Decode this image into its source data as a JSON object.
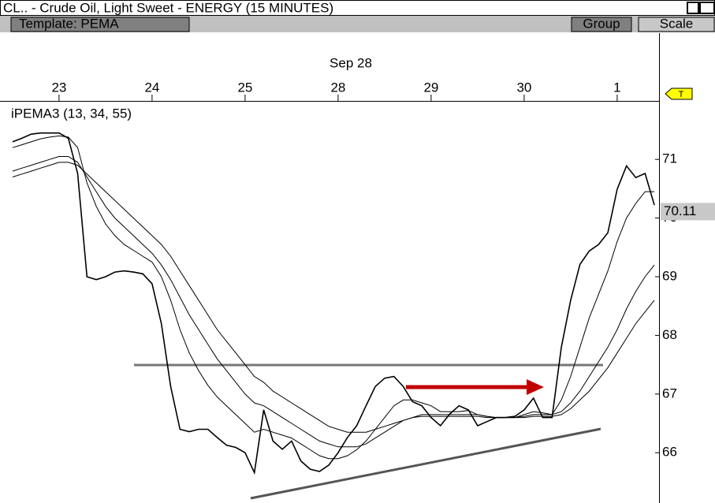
{
  "window": {
    "title": "CL.. - Crude Oil, Light Sweet - ENERGY (15 MINUTES)",
    "template": "Template: PEMA",
    "buttons": [
      "Group",
      "Scale"
    ],
    "marker": "T"
  },
  "chart_data": {
    "type": "line",
    "indicator_label": "iPEMA3 (13, 34, 55)",
    "period_label": "Sep 28",
    "categories": [
      null,
      null,
      null,
      null,
      null,
      "23",
      null,
      null,
      null,
      null,
      null,
      null,
      null,
      null,
      null,
      "24",
      null,
      null,
      null,
      null,
      null,
      null,
      null,
      null,
      null,
      "25",
      null,
      null,
      null,
      null,
      null,
      null,
      null,
      null,
      null,
      "28",
      null,
      null,
      null,
      null,
      null,
      null,
      null,
      null,
      null,
      "29",
      null,
      null,
      null,
      null,
      null,
      null,
      null,
      null,
      null,
      "30",
      null,
      null,
      null,
      null,
      null,
      null,
      null,
      null,
      null,
      "1",
      null,
      null,
      null,
      null
    ],
    "series": [
      {
        "color": "#000000",
        "values": [
          71.3,
          71.36,
          71.43,
          71.45,
          71.45,
          71.45,
          71.36,
          70.76,
          69.0,
          68.95,
          69.0,
          69.08,
          69.1,
          69.08,
          69.05,
          68.88,
          68.2,
          67.13,
          66.4,
          66.36,
          66.4,
          66.4,
          66.26,
          66.13,
          66.09,
          66.0,
          65.66,
          66.73,
          66.2,
          66.06,
          66.2,
          65.86,
          65.72,
          65.68,
          65.79,
          66.0,
          66.26,
          66.46,
          66.8,
          67.13,
          67.27,
          67.3,
          67.13,
          66.87,
          66.8,
          66.6,
          66.46,
          66.66,
          66.8,
          66.73,
          66.46,
          66.53,
          66.6,
          66.6,
          66.62,
          66.73,
          66.93,
          66.6,
          66.6,
          67.8,
          68.6,
          69.21,
          69.44,
          69.55,
          69.75,
          70.49,
          70.89,
          70.69,
          70.76,
          70.22
        ]
      },
      {
        "color": "#000000",
        "values": [
          71.2,
          71.25,
          71.3,
          71.35,
          71.38,
          71.4,
          71.38,
          71.2,
          70.6,
          70.2,
          69.9,
          69.7,
          69.55,
          69.45,
          69.35,
          69.25,
          69.0,
          68.6,
          68.1,
          67.7,
          67.4,
          67.15,
          66.95,
          66.8,
          66.65,
          66.5,
          66.35,
          66.4,
          66.35,
          66.3,
          66.25,
          66.15,
          66.05,
          65.95,
          65.9,
          65.9,
          65.95,
          66.05,
          66.2,
          66.4,
          66.6,
          66.8,
          66.9,
          66.9,
          66.85,
          66.8,
          66.7,
          66.7,
          66.7,
          66.72,
          66.65,
          66.62,
          66.6,
          66.6,
          66.6,
          66.65,
          66.7,
          66.68,
          66.65,
          66.9,
          67.3,
          67.8,
          68.3,
          68.7,
          69.1,
          69.6,
          70.0,
          70.25,
          70.45,
          70.45
        ]
      },
      {
        "color": "#000000",
        "values": [
          70.8,
          70.85,
          70.9,
          70.95,
          71.0,
          71.05,
          71.05,
          70.95,
          70.7,
          70.45,
          70.2,
          70.0,
          69.85,
          69.7,
          69.55,
          69.4,
          69.2,
          68.95,
          68.65,
          68.35,
          68.1,
          67.85,
          67.6,
          67.4,
          67.2,
          67.0,
          66.85,
          66.8,
          66.7,
          66.6,
          66.5,
          66.4,
          66.3,
          66.2,
          66.15,
          66.1,
          66.1,
          66.1,
          66.15,
          66.25,
          66.35,
          66.45,
          66.55,
          66.6,
          66.65,
          66.65,
          66.65,
          66.65,
          66.65,
          66.65,
          66.65,
          66.62,
          66.6,
          66.6,
          66.6,
          66.62,
          66.65,
          66.65,
          66.65,
          66.7,
          66.85,
          67.05,
          67.3,
          67.55,
          67.8,
          68.1,
          68.45,
          68.75,
          69.0,
          69.2
        ]
      },
      {
        "color": "#000000",
        "values": [
          70.7,
          70.75,
          70.8,
          70.85,
          70.9,
          70.95,
          70.95,
          70.9,
          70.75,
          70.6,
          70.45,
          70.3,
          70.15,
          70.0,
          69.85,
          69.7,
          69.55,
          69.35,
          69.1,
          68.85,
          68.6,
          68.35,
          68.1,
          67.9,
          67.7,
          67.5,
          67.3,
          67.2,
          67.05,
          66.95,
          66.85,
          66.75,
          66.65,
          66.55,
          66.45,
          66.4,
          66.35,
          66.35,
          66.35,
          66.4,
          66.45,
          66.5,
          66.55,
          66.6,
          66.62,
          66.62,
          66.62,
          66.62,
          66.62,
          66.62,
          66.62,
          66.6,
          66.6,
          66.6,
          66.6,
          66.6,
          66.62,
          66.62,
          66.62,
          66.65,
          66.75,
          66.9,
          67.05,
          67.25,
          67.45,
          67.7,
          67.95,
          68.2,
          68.4,
          68.6
        ]
      }
    ],
    "ylim": [
      65.17,
      71.97
    ],
    "yticks": [
      66,
      67,
      68,
      69,
      70,
      71
    ],
    "last_value": 70.11
  }
}
